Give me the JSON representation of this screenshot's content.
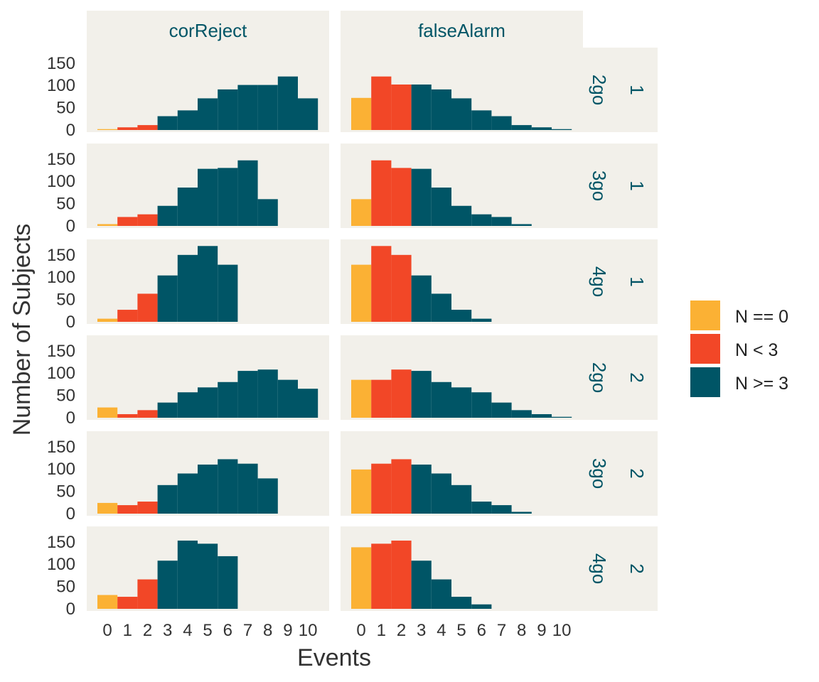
{
  "chart_data": {
    "type": "bar",
    "title": "",
    "xlabel": "Events",
    "ylabel": "Number of Subjects",
    "x_categories": [
      "0",
      "1",
      "2",
      "3",
      "4",
      "5",
      "6",
      "7",
      "8",
      "9",
      "10"
    ],
    "y_ticks": [
      "0",
      "50",
      "100",
      "150"
    ],
    "ylim": [
      0,
      180
    ],
    "columns": [
      "corReject",
      "falseAlarm"
    ],
    "rows": [
      {
        "level": "2go",
        "session": "1"
      },
      {
        "level": "3go",
        "session": "1"
      },
      {
        "level": "4go",
        "session": "1"
      },
      {
        "level": "2go",
        "session": "2"
      },
      {
        "level": "3go",
        "session": "2"
      },
      {
        "level": "4go",
        "session": "2"
      }
    ],
    "legend": [
      {
        "label": "N == 0",
        "color": "#FBB134"
      },
      {
        "label": "N < 3",
        "color": "#F24727"
      },
      {
        "label": "N >= 3",
        "color": "#005566"
      }
    ],
    "colors": {
      "panel_bg": "#F2F0EA",
      "strip_text": "#005566",
      "axis_text": "#333333"
    },
    "panels": [
      [
        {
          "values": [
            2,
            6,
            11,
            31,
            44,
            71,
            91,
            101,
            101,
            120,
            71
          ],
          "groups": [
            0,
            1,
            1,
            2,
            2,
            2,
            2,
            2,
            2,
            2,
            2
          ]
        },
        {
          "values": [
            72,
            120,
            102,
            102,
            91,
            71,
            44,
            31,
            11,
            6,
            2
          ],
          "groups": [
            0,
            1,
            1,
            2,
            2,
            2,
            2,
            2,
            2,
            2,
            2
          ]
        }
      ],
      [
        {
          "values": [
            4,
            20,
            26,
            45,
            86,
            128,
            130,
            147,
            60,
            0,
            0
          ],
          "groups": [
            0,
            1,
            1,
            2,
            2,
            2,
            2,
            2,
            2,
            2,
            2
          ]
        },
        {
          "values": [
            60,
            147,
            130,
            128,
            86,
            45,
            26,
            20,
            4,
            0,
            0
          ],
          "groups": [
            0,
            1,
            1,
            2,
            2,
            2,
            2,
            2,
            2,
            2,
            2
          ]
        }
      ],
      [
        {
          "values": [
            7,
            27,
            63,
            104,
            150,
            170,
            128,
            0,
            0,
            0,
            0
          ],
          "groups": [
            0,
            1,
            1,
            2,
            2,
            2,
            2,
            2,
            2,
            2,
            2
          ]
        },
        {
          "values": [
            128,
            170,
            150,
            104,
            63,
            27,
            7,
            0,
            0,
            0,
            0
          ],
          "groups": [
            0,
            1,
            1,
            2,
            2,
            2,
            2,
            2,
            2,
            2,
            2
          ]
        }
      ],
      [
        {
          "values": [
            23,
            8,
            17,
            34,
            57,
            68,
            80,
            105,
            108,
            85,
            65
          ],
          "groups": [
            0,
            1,
            1,
            2,
            2,
            2,
            2,
            2,
            2,
            2,
            2
          ]
        },
        {
          "values": [
            85,
            85,
            108,
            105,
            80,
            68,
            57,
            34,
            17,
            8,
            2
          ],
          "groups": [
            0,
            1,
            1,
            2,
            2,
            2,
            2,
            2,
            2,
            2,
            2
          ]
        }
      ],
      [
        {
          "values": [
            24,
            19,
            27,
            64,
            90,
            110,
            122,
            112,
            79,
            0,
            0
          ],
          "groups": [
            0,
            1,
            1,
            2,
            2,
            2,
            2,
            2,
            2,
            2,
            2
          ]
        },
        {
          "values": [
            99,
            112,
            122,
            110,
            90,
            64,
            27,
            19,
            4,
            0,
            0
          ],
          "groups": [
            0,
            1,
            1,
            2,
            2,
            2,
            2,
            2,
            2,
            2,
            2
          ]
        }
      ],
      [
        {
          "values": [
            31,
            27,
            66,
            108,
            153,
            146,
            118,
            0,
            0,
            0,
            0
          ],
          "groups": [
            0,
            1,
            1,
            2,
            2,
            2,
            2,
            2,
            2,
            2,
            2
          ]
        },
        {
          "values": [
            138,
            146,
            153,
            108,
            66,
            27,
            10,
            0,
            0,
            0,
            0
          ],
          "groups": [
            0,
            1,
            1,
            2,
            2,
            2,
            2,
            2,
            2,
            2,
            2
          ]
        }
      ]
    ]
  }
}
